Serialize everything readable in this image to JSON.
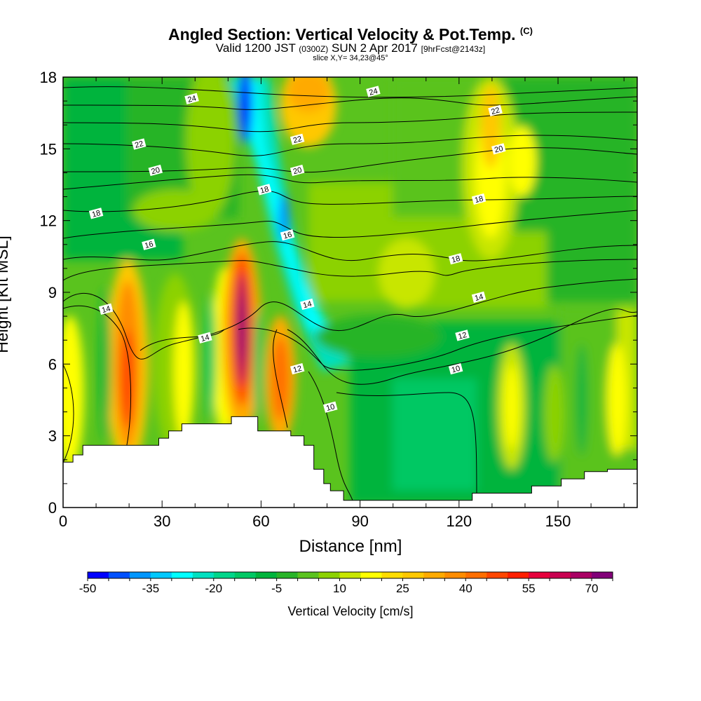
{
  "header": {
    "title": "Angled Section: Vertical Velocity & Pot.Temp.",
    "title_mark": "(C)",
    "valid_prefix": "Valid 1200 JST",
    "valid_utc": "(0300Z)",
    "valid_date": "SUN 2 Apr 2017",
    "forecast": "[9hrFcst@2143z]",
    "slice": "slice X,Y= 34,23@45°"
  },
  "chart_data": {
    "type": "heatmap",
    "xlabel": "Distance [nm]",
    "ylabel": "Height [Kft MSL]",
    "xlim": [
      0,
      174
    ],
    "ylim": [
      0,
      18
    ],
    "x_ticks": [
      "0",
      "30",
      "60",
      "90",
      "120",
      "150"
    ],
    "y_ticks": [
      "0",
      "3",
      "6",
      "9",
      "12",
      "15",
      "18"
    ],
    "colorbar": {
      "label": "Vertical Velocity [cm/s]",
      "tick_labels": [
        "-50",
        "-35",
        "-20",
        "-5",
        "10",
        "25",
        "40",
        "55",
        "70"
      ],
      "levels": [
        -50,
        -45,
        -40,
        -35,
        -30,
        -25,
        -20,
        -15,
        -10,
        -5,
        0,
        5,
        10,
        15,
        20,
        25,
        30,
        35,
        40,
        45,
        50,
        55,
        60,
        65,
        70,
        75
      ],
      "colors": [
        "#0000ff",
        "#0050ff",
        "#0096ff",
        "#00c8ff",
        "#00ffff",
        "#00e0c0",
        "#00d68a",
        "#00c864",
        "#00b43c",
        "#28b428",
        "#5ac31e",
        "#8cd200",
        "#c8e600",
        "#ffff00",
        "#ffdc00",
        "#ffc800",
        "#ffaa00",
        "#ff8c00",
        "#ff6e00",
        "#ff4600",
        "#ff1e00",
        "#e6003c",
        "#c80050",
        "#aa0064",
        "#820078"
      ]
    },
    "terrain_nm_kft": [
      [
        0,
        1.9
      ],
      [
        3,
        1.9
      ],
      [
        3,
        2.2
      ],
      [
        6,
        2.2
      ],
      [
        6,
        2.6
      ],
      [
        29,
        2.6
      ],
      [
        29,
        2.9
      ],
      [
        32,
        2.9
      ],
      [
        32,
        3.2
      ],
      [
        36,
        3.2
      ],
      [
        36,
        3.5
      ],
      [
        51,
        3.5
      ],
      [
        51,
        3.8
      ],
      [
        59,
        3.8
      ],
      [
        59,
        3.2
      ],
      [
        69,
        3.2
      ],
      [
        69,
        3.0
      ],
      [
        73,
        3.0
      ],
      [
        73,
        2.6
      ],
      [
        76,
        2.6
      ],
      [
        76,
        1.6
      ],
      [
        79,
        1.6
      ],
      [
        79,
        1.0
      ],
      [
        81,
        1.0
      ],
      [
        81,
        0.7
      ],
      [
        85,
        0.7
      ],
      [
        85,
        0.3
      ],
      [
        124,
        0.3
      ],
      [
        124,
        0.6
      ],
      [
        142,
        0.6
      ],
      [
        142,
        0.9
      ],
      [
        151,
        0.9
      ],
      [
        151,
        1.2
      ],
      [
        158,
        1.2
      ],
      [
        158,
        1.5
      ],
      [
        165,
        1.5
      ],
      [
        165,
        1.6
      ],
      [
        174,
        1.6
      ]
    ],
    "theta_contours": [
      {
        "label": "10",
        "label_at": [
          81,
          4.2
        ]
      },
      {
        "label": "10",
        "label_at": [
          119,
          5.8
        ]
      },
      {
        "label": "12",
        "label_at": [
          71,
          5.8
        ]
      },
      {
        "label": "12",
        "label_at": [
          121,
          7.2
        ]
      },
      {
        "label": "14",
        "label_at": [
          13,
          8.3
        ]
      },
      {
        "label": "14",
        "label_at": [
          43,
          7.1
        ]
      },
      {
        "label": "14",
        "label_at": [
          74,
          8.5
        ]
      },
      {
        "label": "14",
        "label_at": [
          126,
          8.8
        ]
      },
      {
        "label": "16",
        "label_at": [
          26,
          11.0
        ]
      },
      {
        "label": "16",
        "label_at": [
          68,
          11.4
        ]
      },
      {
        "label": "18",
        "label_at": [
          10,
          12.3
        ]
      },
      {
        "label": "18",
        "label_at": [
          61,
          13.3
        ]
      },
      {
        "label": "18",
        "label_at": [
          119,
          10.4
        ]
      },
      {
        "label": "18",
        "label_at": [
          126,
          12.9
        ]
      },
      {
        "label": "20",
        "label_at": [
          28,
          14.1
        ]
      },
      {
        "label": "20",
        "label_at": [
          71,
          14.1
        ]
      },
      {
        "label": "20",
        "label_at": [
          132,
          15.0
        ]
      },
      {
        "label": "22",
        "label_at": [
          23,
          15.2
        ]
      },
      {
        "label": "22",
        "label_at": [
          71,
          15.4
        ]
      },
      {
        "label": "22",
        "label_at": [
          131,
          16.6
        ]
      },
      {
        "label": "24",
        "label_at": [
          39,
          17.1
        ]
      },
      {
        "label": "24",
        "label_at": [
          94,
          17.4
        ]
      }
    ]
  }
}
